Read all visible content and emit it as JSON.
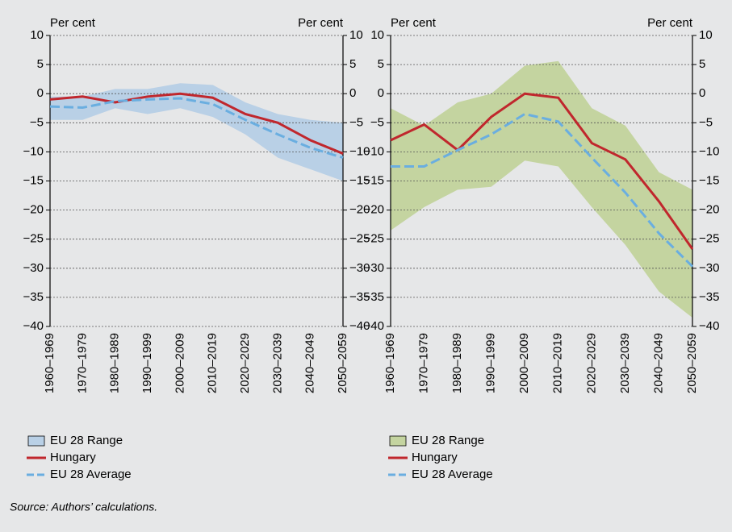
{
  "chart_data": [
    {
      "type": "line",
      "y_label": "Per cent",
      "y2_label": "Per cent",
      "categories": [
        "1960–1969",
        "1970–1979",
        "1980–1989",
        "1990–1999",
        "2000–2009",
        "2010–2019",
        "2020–2029",
        "2030–2039",
        "2040–2049",
        "2050–2059"
      ],
      "ylim": [
        -40,
        10
      ],
      "yticks": [
        10,
        5,
        0,
        {
          "value": -5,
          "label": "−5"
        },
        {
          "value": -10,
          "label": "−10"
        },
        {
          "value": -15,
          "label": "−15"
        },
        {
          "value": -20,
          "label": "−20"
        },
        {
          "value": -25,
          "label": "−25"
        },
        {
          "value": -30,
          "label": "−30"
        },
        {
          "value": -35,
          "label": "−35"
        },
        {
          "value": -40,
          "label": "−40"
        }
      ],
      "grid": true,
      "range": {
        "name": "EU 28 Range",
        "color": "#b9d0e6",
        "low": [
          -4.5,
          -4.5,
          -2.5,
          -3.5,
          -2.5,
          -4,
          -7,
          -11,
          -13,
          -15
        ],
        "high": [
          -0.5,
          -0.5,
          0.8,
          0.8,
          1.8,
          1.5,
          -1.5,
          -3.5,
          -4.5,
          -5
        ]
      },
      "series": [
        {
          "name": "Hungary",
          "color": "#c0272d",
          "dash": false,
          "values": [
            -1,
            -0.5,
            -1.5,
            -0.5,
            0,
            -0.7,
            -3.5,
            -5,
            -8,
            -10.3
          ]
        },
        {
          "name": "EU 28 Average",
          "color": "#6aaee0",
          "dash": true,
          "values": [
            -2.2,
            -2.4,
            -1.3,
            -1,
            -0.8,
            -1.8,
            -4.5,
            -7,
            -9.3,
            -11
          ]
        }
      ]
    },
    {
      "type": "line",
      "y_label": "Per cent",
      "y2_label": "Per cent",
      "categories": [
        "1960–1969",
        "1970–1979",
        "1980–1989",
        "1990–1999",
        "2000–2009",
        "2010–2019",
        "2020–2029",
        "2030–2039",
        "2040–2049",
        "2050–2059"
      ],
      "ylim": [
        -40,
        10
      ],
      "yticks": [
        10,
        5,
        0,
        {
          "value": -5,
          "label": "−5"
        },
        {
          "value": -10,
          "label": "−10"
        },
        {
          "value": -15,
          "label": "−15"
        },
        {
          "value": -20,
          "label": "−20"
        },
        {
          "value": -25,
          "label": "−25"
        },
        {
          "value": -30,
          "label": "−30"
        },
        {
          "value": -35,
          "label": "−35"
        },
        {
          "value": -40,
          "label": "−40"
        }
      ],
      "grid": true,
      "range": {
        "name": "EU 28 Range",
        "color": "#c4d4a0",
        "low": [
          -23.5,
          -19.5,
          -16.5,
          -16,
          -11.5,
          -12.5,
          -19.5,
          -26,
          -34,
          -38.5
        ],
        "high": [
          -2.5,
          -5.5,
          -1.5,
          0,
          4.8,
          5.6,
          -2.5,
          -5.5,
          -13.5,
          -16.5
        ]
      },
      "series": [
        {
          "name": "Hungary",
          "color": "#c0272d",
          "dash": false,
          "values": [
            -8,
            -5.3,
            -9.7,
            -4,
            0,
            -0.7,
            -8.5,
            -11.3,
            -18.5,
            -26.7
          ]
        },
        {
          "name": "EU 28 Average",
          "color": "#6aaee0",
          "dash": true,
          "values": [
            -12.5,
            -12.5,
            -9.7,
            -7,
            -3.5,
            -4.8,
            -11,
            -17,
            -24,
            -29.7
          ]
        }
      ]
    }
  ],
  "source": "Source: Authors’ calculations."
}
